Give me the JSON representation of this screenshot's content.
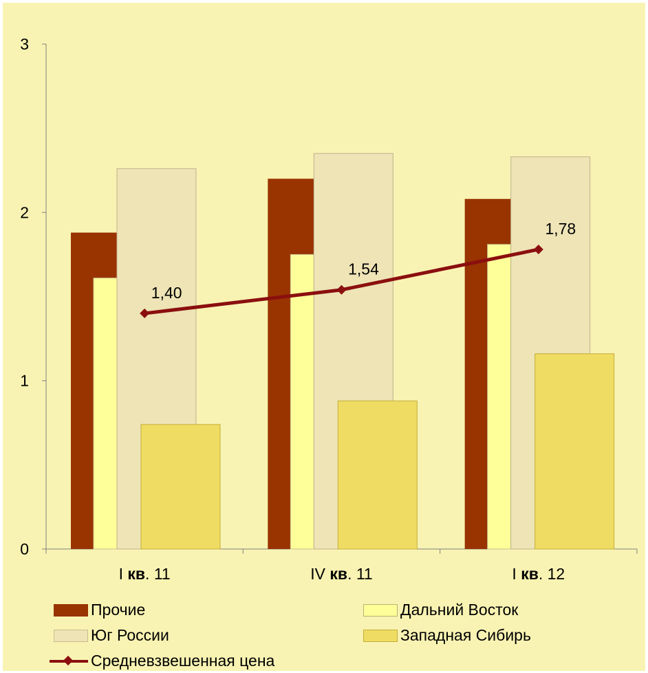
{
  "chart_data": {
    "type": "bar",
    "categories": [
      {
        "prefix": "I ",
        "bold": "кв",
        "suffix": ". 11"
      },
      {
        "prefix": "IV ",
        "bold": "кв",
        "suffix": ". 11"
      },
      {
        "prefix": "I ",
        "bold": "кв",
        "suffix": ". 12"
      }
    ],
    "ylim": [
      0,
      3
    ],
    "yticks": [
      "0",
      "1",
      "2",
      "3"
    ],
    "series": [
      {
        "name": "Прочие",
        "color": "#993300",
        "values": [
          1.88,
          2.2,
          2.08
        ]
      },
      {
        "name": "Дальний Восток",
        "color": "#ffff99",
        "values": [
          1.61,
          1.75,
          1.81
        ]
      },
      {
        "name": "Юг России",
        "color": "#eee4b6",
        "values": [
          2.26,
          2.35,
          2.33
        ]
      },
      {
        "name": "Западная Сибирь",
        "color": "#efdc62",
        "values": [
          0.74,
          0.88,
          1.16
        ]
      }
    ],
    "line_series": {
      "name": "Средневзвешенная цена",
      "color": "#8b0f0f",
      "values": [
        1.4,
        1.54,
        1.78
      ],
      "labels": [
        "1,40",
        "1,54",
        "1,78"
      ]
    },
    "grid": false,
    "legend_position": "bottom"
  }
}
